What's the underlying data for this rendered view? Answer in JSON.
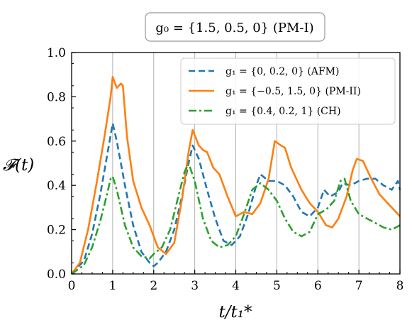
{
  "chart_data": {
    "type": "line",
    "title": "g₀ = {1.5, 0.5, 0} (PM-I)",
    "xlabel": "t/t₁*",
    "ylabel": "𝓕(t)",
    "xlim": [
      0,
      8
    ],
    "ylim": [
      0,
      1.0
    ],
    "xticks": [
      "0",
      "1",
      "2",
      "3",
      "4",
      "5",
      "6",
      "7",
      "8"
    ],
    "yticks": [
      "0.0",
      "0.2",
      "0.4",
      "0.6",
      "0.8",
      "1.0"
    ],
    "vertical_gridlines": [
      1,
      2,
      3,
      4,
      5,
      6,
      7
    ],
    "legend_position": "top-right",
    "series": [
      {
        "name": "g₁ = {0, 0.2, 0} (AFM)",
        "color": "#1f77b4",
        "style": "dashed",
        "x": [
          0,
          0.3,
          0.5,
          0.7,
          0.85,
          1.0,
          1.1,
          1.3,
          1.5,
          1.7,
          1.9,
          2.0,
          2.1,
          2.3,
          2.5,
          2.7,
          2.85,
          2.95,
          3.1,
          3.3,
          3.5,
          3.7,
          3.9,
          4.1,
          4.3,
          4.5,
          4.6,
          4.8,
          5.0,
          5.2,
          5.4,
          5.6,
          5.8,
          6.0,
          6.15,
          6.3,
          6.5,
          6.6,
          6.8,
          7.0,
          7.2,
          7.4,
          7.6,
          7.8,
          7.95,
          8.0
        ],
        "y": [
          0,
          0.06,
          0.18,
          0.36,
          0.52,
          0.68,
          0.6,
          0.4,
          0.22,
          0.1,
          0.05,
          0.035,
          0.05,
          0.1,
          0.2,
          0.36,
          0.5,
          0.58,
          0.52,
          0.38,
          0.25,
          0.15,
          0.13,
          0.17,
          0.27,
          0.4,
          0.45,
          0.42,
          0.42,
          0.4,
          0.35,
          0.28,
          0.26,
          0.3,
          0.38,
          0.35,
          0.37,
          0.41,
          0.4,
          0.42,
          0.43,
          0.43,
          0.4,
          0.38,
          0.42,
          0.38
        ]
      },
      {
        "name": "g₁ = {−0.5, 1.5, 0} (PM-II)",
        "color": "#ff7f0e",
        "style": "solid",
        "x": [
          0,
          0.2,
          0.4,
          0.6,
          0.8,
          0.95,
          1.0,
          1.1,
          1.2,
          1.25,
          1.35,
          1.5,
          1.7,
          1.9,
          2.1,
          2.3,
          2.5,
          2.7,
          2.85,
          2.95,
          3.1,
          3.2,
          3.3,
          3.45,
          3.6,
          3.8,
          4.0,
          4.2,
          4.4,
          4.6,
          4.8,
          4.95,
          5.1,
          5.2,
          5.35,
          5.6,
          5.8,
          6.0,
          6.2,
          6.35,
          6.5,
          6.7,
          6.85,
          6.95,
          7.1,
          7.3,
          7.5,
          7.7,
          7.9,
          8.0
        ],
        "y": [
          0,
          0.05,
          0.2,
          0.4,
          0.62,
          0.8,
          0.89,
          0.84,
          0.86,
          0.85,
          0.62,
          0.42,
          0.3,
          0.22,
          0.12,
          0.09,
          0.14,
          0.35,
          0.55,
          0.65,
          0.58,
          0.56,
          0.55,
          0.48,
          0.45,
          0.35,
          0.26,
          0.28,
          0.27,
          0.32,
          0.43,
          0.6,
          0.58,
          0.57,
          0.48,
          0.38,
          0.32,
          0.28,
          0.22,
          0.21,
          0.25,
          0.35,
          0.47,
          0.52,
          0.51,
          0.43,
          0.36,
          0.32,
          0.28,
          0.26
        ]
      },
      {
        "name": "g₁ = {0.4, 0.2, 1} (CH)",
        "color": "#2ca02c",
        "style": "dashdot",
        "x": [
          0,
          0.3,
          0.5,
          0.7,
          0.85,
          0.95,
          1.0,
          1.1,
          1.3,
          1.5,
          1.7,
          1.9,
          2.0,
          2.2,
          2.4,
          2.6,
          2.75,
          2.85,
          3.0,
          3.2,
          3.4,
          3.6,
          3.8,
          4.0,
          4.2,
          4.4,
          4.6,
          4.8,
          5.0,
          5.2,
          5.4,
          5.6,
          5.8,
          6.0,
          6.2,
          6.4,
          6.55,
          6.65,
          6.8,
          7.0,
          7.2,
          7.4,
          7.6,
          7.8,
          8.0
        ],
        "y": [
          0,
          0.04,
          0.12,
          0.24,
          0.35,
          0.43,
          0.44,
          0.38,
          0.22,
          0.12,
          0.08,
          0.07,
          0.09,
          0.12,
          0.2,
          0.35,
          0.46,
          0.5,
          0.42,
          0.25,
          0.15,
          0.12,
          0.13,
          0.17,
          0.27,
          0.38,
          0.41,
          0.38,
          0.33,
          0.25,
          0.19,
          0.17,
          0.19,
          0.27,
          0.29,
          0.33,
          0.42,
          0.43,
          0.33,
          0.27,
          0.25,
          0.23,
          0.21,
          0.2,
          0.22
        ]
      }
    ]
  }
}
